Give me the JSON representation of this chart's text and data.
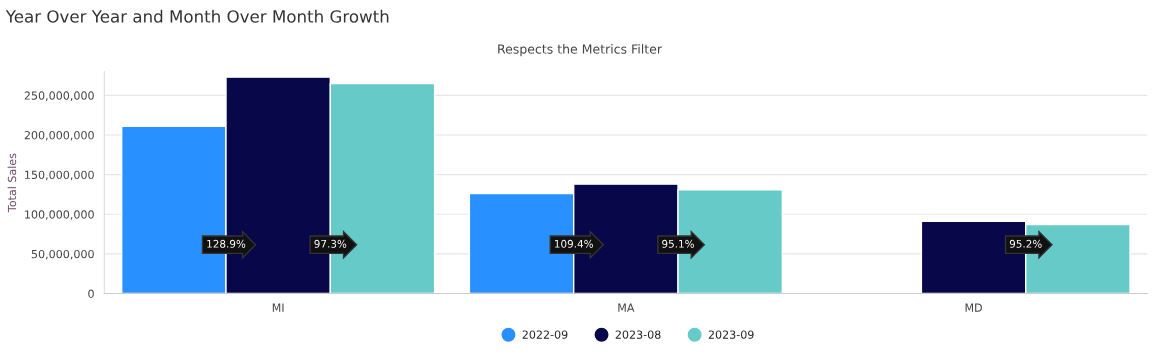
{
  "chart_data": {
    "type": "bar",
    "title": "Year Over Year and Month Over Month Growth",
    "subtitle": "Respects the Metrics Filter",
    "ylabel": "Total Sales",
    "categories": [
      "MI",
      "MA",
      "MD"
    ],
    "series": [
      {
        "name": "2022-09",
        "color": "#2990ff",
        "values": [
          211000000,
          126000000,
          null
        ]
      },
      {
        "name": "2023-08",
        "color": "#08074a",
        "values": [
          273000000,
          138000000,
          91000000
        ]
      },
      {
        "name": "2023-09",
        "color": "#66cbc8",
        "values": [
          265000000,
          131000000,
          87000000
        ]
      }
    ],
    "ylim": [
      0,
      280000000
    ],
    "yticks": [
      {
        "value": 0,
        "label": "0"
      },
      {
        "value": 50000000,
        "label": "50,000,000"
      },
      {
        "value": 100000000,
        "label": "100,000,000"
      },
      {
        "value": 150000000,
        "label": "150,000,000"
      },
      {
        "value": 200000000,
        "label": "200,000,000"
      },
      {
        "value": 250000000,
        "label": "250,000,000"
      }
    ],
    "annotations": [
      "128.9%",
      "97.3%",
      "109.4%",
      "95.1%",
      "95.2%"
    ],
    "grid": "y",
    "legend": "bottom",
    "marker": "circle"
  }
}
